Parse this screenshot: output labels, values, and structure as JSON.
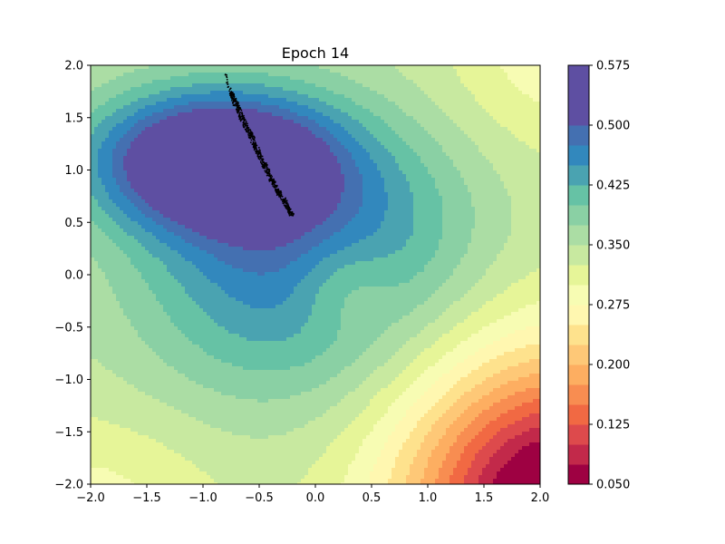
{
  "chart_data": {
    "type": "contour",
    "title": "Epoch 14",
    "xlabel": "",
    "ylabel": "",
    "xlim": [
      -2.0,
      2.0
    ],
    "ylim": [
      -2.0,
      2.0
    ],
    "x_ticks": [
      "−2.0",
      "−1.5",
      "−1.0",
      "−0.5",
      "0.0",
      "0.5",
      "1.0",
      "1.5",
      "2.0"
    ],
    "y_ticks": [
      "2.0",
      "1.5",
      "1.0",
      "0.5",
      "0.0",
      "−0.5",
      "−1.0",
      "−1.5",
      "−2.0"
    ],
    "colormap": "Spectral",
    "colorbar": {
      "min": 0.05,
      "max": 0.575,
      "levels": [
        0.05,
        0.075,
        0.1,
        0.125,
        0.15,
        0.175,
        0.2,
        0.225,
        0.25,
        0.275,
        0.3,
        0.325,
        0.35,
        0.375,
        0.4,
        0.425,
        0.45,
        0.475,
        0.5,
        0.525,
        0.55,
        0.575
      ],
      "tick_labels": [
        "0.575",
        "0.500",
        "0.425",
        "0.350",
        "0.275",
        "0.200",
        "0.125",
        "0.050"
      ],
      "colors": [
        "#9e0142",
        "#c2294a",
        "#dd4a4c",
        "#f16943",
        "#f88d51",
        "#fdae61",
        "#fec877",
        "#fee28d",
        "#fff7b0",
        "#f7fcb3",
        "#e6f598",
        "#c8e9a0",
        "#abdda4",
        "#8ad0a4",
        "#66c2a5",
        "#4aa3b1",
        "#3288bd",
        "#4470b1",
        "#5e4fa2",
        "#5e4fa2",
        "#5e4fa2"
      ]
    },
    "scatter": {
      "color": "#000000",
      "description_points": [
        [
          -0.8,
          1.91
        ],
        [
          -0.78,
          1.82
        ],
        [
          -0.75,
          1.74
        ],
        [
          -0.72,
          1.66
        ],
        [
          -0.68,
          1.57
        ],
        [
          -0.65,
          1.49
        ],
        [
          -0.61,
          1.4
        ],
        [
          -0.57,
          1.32
        ],
        [
          -0.53,
          1.22
        ],
        [
          -0.49,
          1.13
        ],
        [
          -0.45,
          1.04
        ],
        [
          -0.41,
          0.95
        ],
        [
          -0.37,
          0.87
        ],
        [
          -0.33,
          0.79
        ],
        [
          -0.28,
          0.71
        ],
        [
          -0.24,
          0.63
        ],
        [
          -0.21,
          0.57
        ]
      ]
    }
  }
}
